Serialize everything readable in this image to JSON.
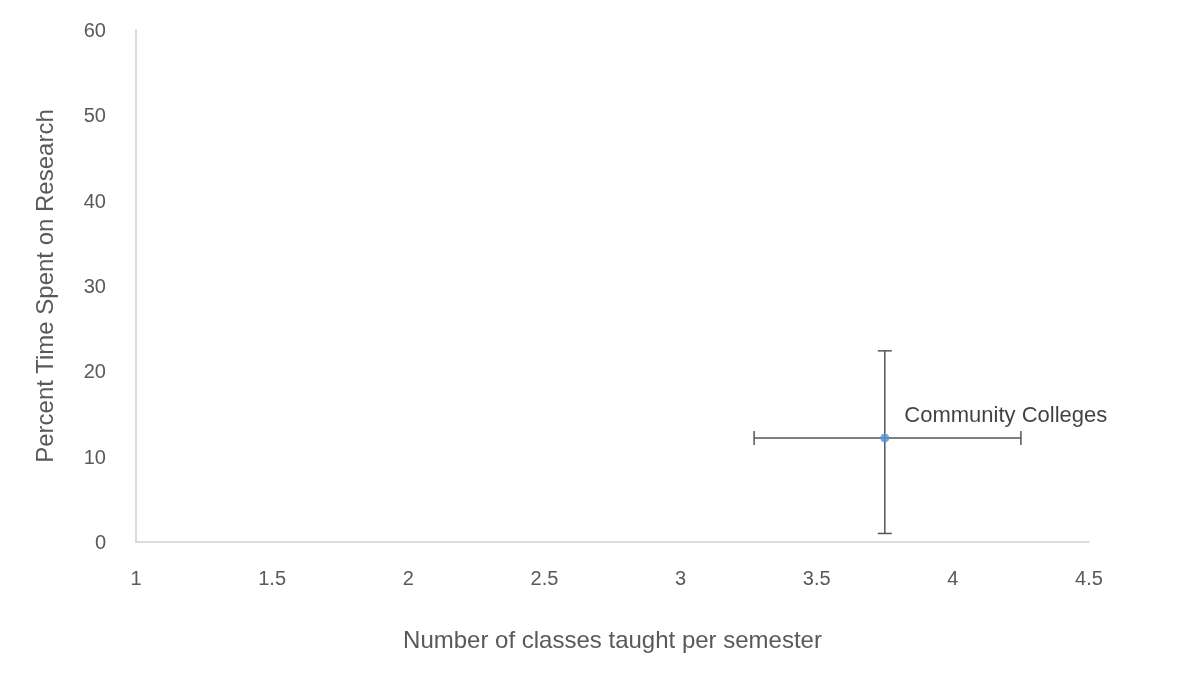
{
  "chart_data": {
    "type": "scatter",
    "xlabel": "Number of classes taught per semester",
    "ylabel": "Percent Time Spent on Research",
    "series": [
      {
        "name": "Community Colleges",
        "color": "#5b8fd6",
        "x": [
          3.75
        ],
        "values": [
          12.2
        ],
        "errors": [
          [
            1,
            22.4
          ]
        ],
        "xerrors": [
          [
            3.27,
            4.25
          ]
        ]
      }
    ],
    "xlim": [
      1,
      4.5
    ],
    "xticks": [
      1,
      1.5,
      2,
      2.5,
      3,
      3.5,
      4,
      4.5
    ],
    "ylim": [
      0,
      60
    ],
    "yticks": [
      0,
      10,
      20,
      30,
      40,
      50,
      60
    ],
    "grid": false,
    "legend": false,
    "marker": "circle"
  }
}
